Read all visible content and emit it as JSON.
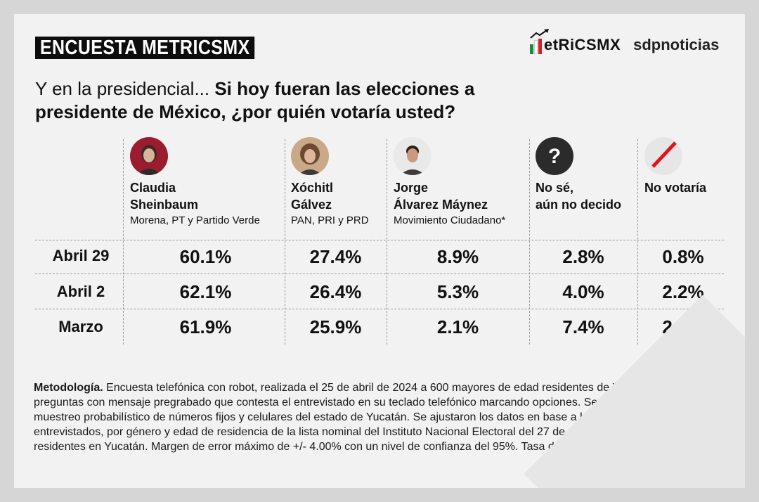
{
  "header": {
    "badge": "ENCUESTA METRICSMX",
    "logo_metrics": "etRiCSMX",
    "logo_sdp": "sdpnoticias"
  },
  "question": {
    "lead": "Y en la presidencial... ",
    "main": "Si hoy fueran las elecciones a presidente de México, ¿por quién votaría usted?"
  },
  "candidates": [
    {
      "name": "Claudia\nSheinbaum",
      "party": "Morena, PT y Partido Verde",
      "icon": "portrait"
    },
    {
      "name": "Xóchitl\nGálvez",
      "party": "PAN, PRI y PRD",
      "icon": "portrait"
    },
    {
      "name": "Jorge\nÁlvarez Máynez",
      "party": "Movimiento Ciudadano*",
      "icon": "portrait"
    },
    {
      "name": "No sé,\naún no decido",
      "party": "",
      "icon": "question-mark"
    },
    {
      "name": "No votaría",
      "party": "",
      "icon": "no-vote-slash"
    }
  ],
  "rows": [
    {
      "label": "Abril 29",
      "values": [
        "60.1%",
        "27.4%",
        "8.9%",
        "2.8%",
        "0.8%"
      ]
    },
    {
      "label": "Abril 2",
      "values": [
        "62.1%",
        "26.4%",
        "5.3%",
        "4.0%",
        "2.2%"
      ]
    },
    {
      "label": "Marzo",
      "values": [
        "61.9%",
        "25.9%",
        "2.1%",
        "7.4%",
        "2.7%"
      ]
    }
  ],
  "methodology": {
    "title": "Metodología.",
    "text": " Encuesta telefónica con robot, realizada el 25 de abril de 2024 a 600 mayores de edad residentes de Yucatán. Enviando preguntas con mensaje pregrabado que contesta el entrevistado en su teclado telefónico marcando opciones. Se llevo a cabo un muestreo probabilístico de números fijos y celulares del estado de Yucatán. Se ajustaron los datos en base a las características de los entrevistados, por género y edad de residencia de la lista nominal del Instituto Nacional Electoral del 27 de marzo de 2024 de residentes en Yucatán. Margen de error máximo de +/- 4.00% con un nivel de confianza del 95%. Tasa de rechazo: 98.6%."
  },
  "colors": {
    "morena": "#9b1c2e",
    "mexico_green": "#1f8a3b",
    "mexico_red": "#d62027",
    "no_vote_red": "#e0151b"
  }
}
